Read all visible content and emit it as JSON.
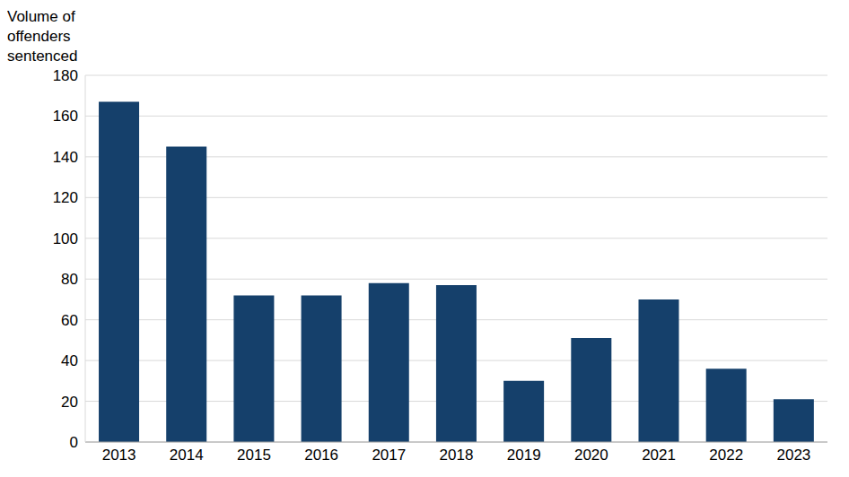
{
  "chart_data": {
    "type": "bar",
    "y_label": "Volume of offenders sentenced",
    "categories": [
      "2013",
      "2014",
      "2015",
      "2016",
      "2017",
      "2018",
      "2019",
      "2020",
      "2021",
      "2022",
      "2023"
    ],
    "values": [
      167,
      145,
      72,
      72,
      78,
      77,
      30,
      51,
      70,
      36,
      21
    ],
    "color": "#15406b",
    "ylim": [
      0,
      180
    ],
    "yticks": [
      0,
      20,
      40,
      60,
      80,
      100,
      120,
      140,
      160,
      180
    ],
    "grid": true
  }
}
